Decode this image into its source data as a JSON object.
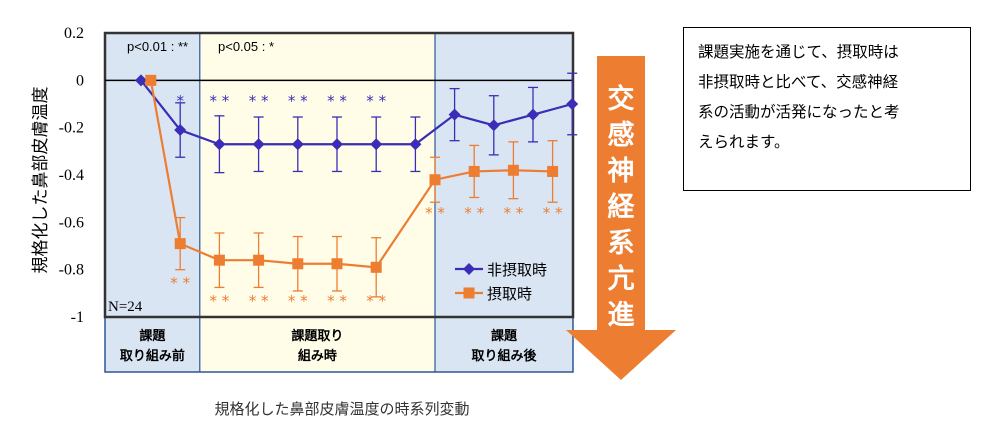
{
  "chart_data": {
    "type": "line",
    "ylabel": "規格化した鼻部皮膚温度",
    "caption": "規格化した鼻部皮膚温度の時系列変動",
    "ylim": [
      -1,
      0.2
    ],
    "yticks": [
      {
        "value": 0.2,
        "label": "0.2"
      },
      {
        "value": 0,
        "label": "0"
      },
      {
        "value": -0.2,
        "label": "-0.2"
      },
      {
        "value": -0.4,
        "label": "-0.4"
      },
      {
        "value": -0.6,
        "label": "-0.6"
      },
      {
        "value": -0.8,
        "label": "-0.8"
      },
      {
        "value": -1,
        "label": "-1"
      }
    ],
    "n_label": "N=24",
    "significance": [
      "p<0.01 : **",
      "p<0.05 : *"
    ],
    "phases": [
      {
        "label_line1": "課題",
        "label_line2": "取り組み前",
        "start": 0,
        "end": 1.5,
        "color": "#D9E5F3"
      },
      {
        "label_line1": "課題取り",
        "label_line2": "組み時",
        "start": 1.5,
        "end": 7.5,
        "color": "#FFFDE8"
      },
      {
        "label_line1": "課題",
        "label_line2": "取り組み後",
        "start": 7.5,
        "end": 11.5,
        "color": "#D9E5F3"
      }
    ],
    "x_points": [
      0,
      1,
      2,
      3,
      4,
      5,
      6,
      7,
      8,
      9,
      10,
      11
    ],
    "series": [
      {
        "name": "非摂取時",
        "color": "#3B2DB5",
        "marker": "diamond",
        "values": [
          0,
          -0.21,
          -0.27,
          -0.27,
          -0.27,
          -0.27,
          -0.27,
          -0.27,
          -0.145,
          -0.19,
          -0.145,
          -0.1
        ],
        "error": [
          0,
          0.115,
          0.12,
          0.115,
          0.115,
          0.115,
          0.115,
          0.115,
          0.11,
          0.125,
          0.115,
          0.13
        ],
        "stars": [
          "",
          "*",
          "* *",
          "* *",
          "* *",
          "* *",
          "* *",
          "",
          "",
          "",
          "",
          ""
        ]
      },
      {
        "name": "摂取時",
        "color": "#ED7D31",
        "marker": "square",
        "values": [
          0,
          -0.69,
          -0.76,
          -0.76,
          -0.775,
          -0.775,
          -0.79,
          -0.42,
          -0.385,
          -0.38,
          -0.385
        ],
        "x": [
          0.25,
          1,
          2,
          3,
          4,
          5,
          6,
          7.5,
          8.5,
          9.5,
          10.5
        ],
        "error": [
          0,
          0.11,
          0.115,
          0.115,
          0.115,
          0.115,
          0.125,
          0.095,
          0.11,
          0.12,
          0.13
        ],
        "stars": [
          "",
          "* *",
          "* *",
          "* *",
          "* *",
          "* *",
          "* *",
          "* *",
          "* *",
          "* *",
          "* *"
        ]
      }
    ]
  },
  "arrow": {
    "text": [
      "交",
      "感",
      "神",
      "経",
      "系",
      "亢",
      "進"
    ],
    "color": "#ED7D31"
  },
  "note": {
    "lines": [
      "課題実施を通じて、摂取時は",
      "非摂取時と比べて、交感神経",
      "系の活動が活発になったと考",
      "えられます。"
    ]
  }
}
